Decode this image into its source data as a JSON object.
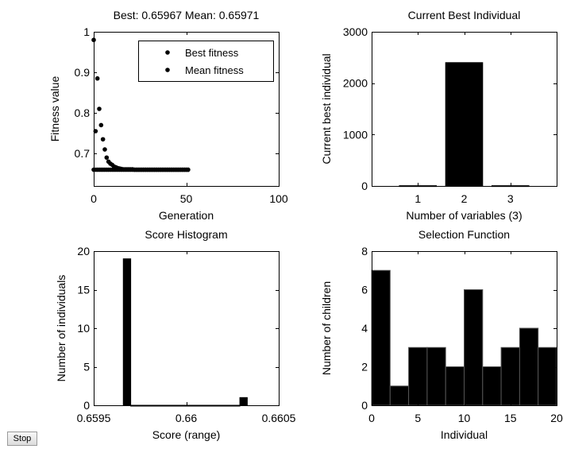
{
  "stop_button": {
    "label": "Stop"
  },
  "chart_data": [
    {
      "type": "scatter",
      "title": "Best: 0.65967 Mean: 0.65971",
      "xlabel": "Generation",
      "ylabel": "Fitness value",
      "xlim": [
        0,
        100
      ],
      "ylim": [
        0.62,
        1.0
      ],
      "xticks": [
        0,
        50,
        100
      ],
      "yticks": [
        0.7,
        0.8,
        0.9,
        1
      ],
      "grid": false,
      "legend_position": "top-right",
      "series": [
        {
          "name": "Best fitness",
          "color": "#000000",
          "marker": "dot",
          "x": [
            0,
            1,
            2,
            3,
            4,
            5,
            6,
            7,
            8,
            9,
            10,
            11,
            12,
            13,
            14,
            15,
            16,
            17,
            18,
            19,
            20,
            21,
            22,
            23,
            24,
            25,
            26,
            27,
            28,
            29,
            30,
            31,
            32,
            33,
            34,
            35,
            36,
            37,
            38,
            39,
            40,
            41,
            42,
            43,
            44,
            45,
            46,
            47,
            48,
            49,
            50,
            51
          ],
          "y": [
            0.66,
            0.66,
            0.66,
            0.66,
            0.66,
            0.66,
            0.66,
            0.66,
            0.66,
            0.66,
            0.66,
            0.66,
            0.66,
            0.66,
            0.66,
            0.66,
            0.66,
            0.66,
            0.66,
            0.66,
            0.66,
            0.66,
            0.66,
            0.66,
            0.66,
            0.66,
            0.66,
            0.66,
            0.66,
            0.66,
            0.66,
            0.66,
            0.66,
            0.66,
            0.66,
            0.66,
            0.66,
            0.66,
            0.66,
            0.66,
            0.66,
            0.66,
            0.66,
            0.66,
            0.66,
            0.66,
            0.66,
            0.66,
            0.66,
            0.66,
            0.66,
            0.66
          ]
        },
        {
          "name": "Mean fitness",
          "color": "#000000",
          "marker": "dot",
          "x": [
            0,
            1,
            2,
            3,
            4,
            5,
            6,
            7,
            8,
            9,
            10,
            11,
            12,
            13,
            14,
            15,
            16,
            17,
            18,
            19,
            20,
            21,
            22,
            23,
            24,
            25,
            26,
            27,
            28,
            29,
            30,
            31,
            32,
            33,
            34,
            35,
            36,
            37,
            38,
            39,
            40,
            41,
            42,
            43,
            44,
            45,
            46,
            47,
            48,
            49,
            50,
            51
          ],
          "y": [
            0.98,
            0.755,
            0.885,
            0.81,
            0.77,
            0.735,
            0.71,
            0.69,
            0.68,
            0.675,
            0.672,
            0.668,
            0.666,
            0.664,
            0.663,
            0.662,
            0.661,
            0.661,
            0.661,
            0.661,
            0.661,
            0.661,
            0.66,
            0.66,
            0.66,
            0.66,
            0.66,
            0.66,
            0.66,
            0.66,
            0.66,
            0.66,
            0.66,
            0.66,
            0.66,
            0.66,
            0.66,
            0.66,
            0.66,
            0.66,
            0.66,
            0.66,
            0.66,
            0.66,
            0.66,
            0.66,
            0.66,
            0.66,
            0.66,
            0.66,
            0.66,
            0.66
          ]
        }
      ]
    },
    {
      "type": "bar",
      "title": "Current Best Individual",
      "xlabel": "Number of variables (3)",
      "ylabel": "Current best individual",
      "xlim": [
        0,
        4
      ],
      "ylim": [
        0,
        3000
      ],
      "categories": [
        "1",
        "2",
        "3"
      ],
      "values": [
        5,
        2400,
        5
      ],
      "yticks": [
        0,
        1000,
        2000,
        3000
      ],
      "bar_color": "#000000"
    },
    {
      "type": "bar",
      "title": "Score Histogram",
      "xlabel": "Score (range)",
      "ylabel": "Number of individuals",
      "xlim": [
        0.6595,
        0.6605
      ],
      "ylim": [
        0,
        20
      ],
      "xticks": [
        0.6595,
        0.66,
        0.6605
      ],
      "xtick_labels": [
        "0.6595",
        "0.66",
        "0.6605"
      ],
      "yticks": [
        0,
        5,
        10,
        15,
        20
      ],
      "bins": [
        {
          "x0": 0.65966,
          "x1": 0.6597,
          "count": 19
        },
        {
          "x0": 0.6597,
          "x1": 0.66029,
          "count": 0
        },
        {
          "x0": 0.66029,
          "x1": 0.66033,
          "count": 1
        }
      ],
      "bar_color": "#000000"
    },
    {
      "type": "bar",
      "title": "Selection Function",
      "xlabel": "Individual",
      "ylabel": "Number of children",
      "xlim": [
        0,
        20
      ],
      "ylim": [
        0,
        8
      ],
      "xticks": [
        0,
        5,
        10,
        15,
        20
      ],
      "yticks": [
        0,
        2,
        4,
        6,
        8
      ],
      "bins": [
        {
          "x0": 0,
          "x1": 2,
          "count": 7
        },
        {
          "x0": 2,
          "x1": 4,
          "count": 1
        },
        {
          "x0": 4,
          "x1": 6,
          "count": 3
        },
        {
          "x0": 6,
          "x1": 8,
          "count": 3
        },
        {
          "x0": 8,
          "x1": 10,
          "count": 2
        },
        {
          "x0": 10,
          "x1": 12,
          "count": 6
        },
        {
          "x0": 12,
          "x1": 14,
          "count": 2
        },
        {
          "x0": 14,
          "x1": 16,
          "count": 3
        },
        {
          "x0": 16,
          "x1": 18,
          "count": 4
        },
        {
          "x0": 18,
          "x1": 20,
          "count": 3
        }
      ],
      "bar_color": "#000000",
      "edge_color": "#555555"
    }
  ]
}
